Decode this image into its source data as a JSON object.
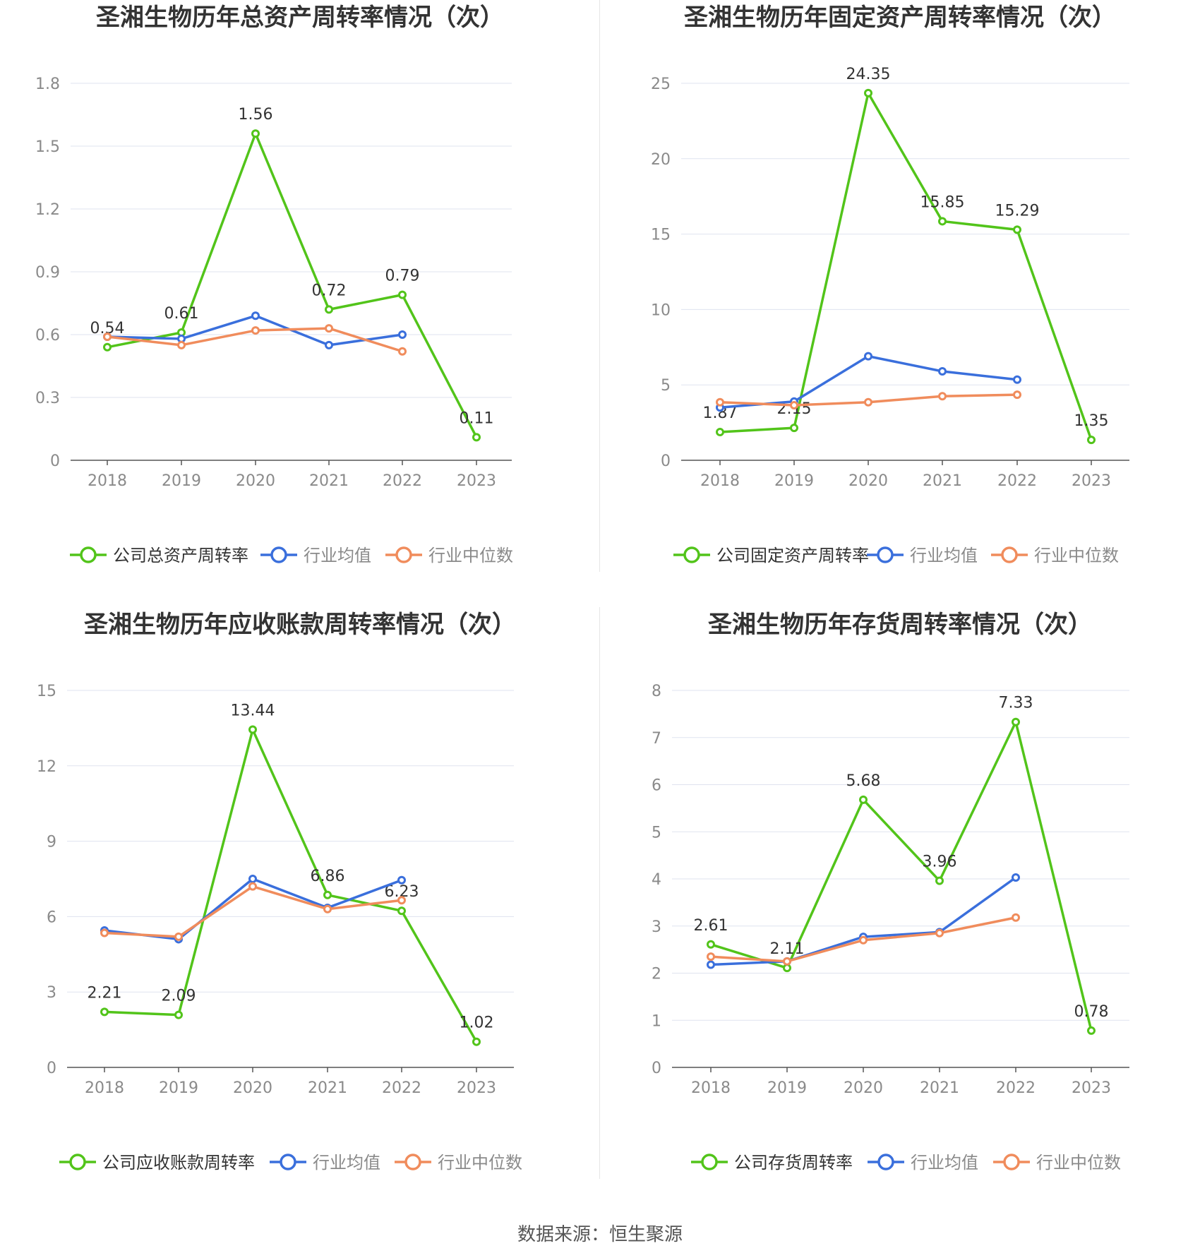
{
  "source": "数据来源：恒生聚源",
  "legend_common": {
    "avg": "行业均值",
    "median": "行业中位数"
  },
  "colors": {
    "company": "#52c41a",
    "avg": "#3a6fdc",
    "median": "#f08c5c",
    "grid": "#dfe3ef",
    "axis": "#555555",
    "tick_text": "#8a8a8a"
  },
  "chart_data": [
    {
      "type": "line",
      "title": "圣湘生物历年总资产周转率情况（次）",
      "categories": [
        "2018",
        "2019",
        "2020",
        "2021",
        "2022",
        "2023"
      ],
      "ylim": [
        0,
        1.8
      ],
      "yticks": [
        "0",
        "0.3",
        "0.6",
        "0.9",
        "1.2",
        "1.5",
        "1.8"
      ],
      "series": [
        {
          "name": "公司总资产周转率",
          "values": [
            0.54,
            0.61,
            1.56,
            0.72,
            0.79,
            0.11
          ],
          "labels": [
            "0.54",
            "0.61",
            "1.56",
            "0.72",
            "0.79",
            "0.11"
          ]
        },
        {
          "name": "行业均值",
          "values": [
            0.59,
            0.58,
            0.69,
            0.55,
            0.6,
            null
          ]
        },
        {
          "name": "行业中位数",
          "values": [
            0.59,
            0.55,
            0.62,
            0.63,
            0.52,
            null
          ]
        }
      ]
    },
    {
      "type": "line",
      "title": "圣湘生物历年固定资产周转率情况（次）",
      "categories": [
        "2018",
        "2019",
        "2020",
        "2021",
        "2022",
        "2023"
      ],
      "ylim": [
        0,
        25
      ],
      "yticks": [
        "0",
        "5",
        "10",
        "15",
        "20",
        "25"
      ],
      "series": [
        {
          "name": "公司固定资产周转率",
          "values": [
            1.87,
            2.15,
            24.35,
            15.85,
            15.29,
            1.35
          ],
          "labels": [
            "1.87",
            "2.15",
            "24.35",
            "15.85",
            "15.29",
            "1.35"
          ]
        },
        {
          "name": "行业均值",
          "values": [
            3.5,
            3.9,
            6.9,
            5.9,
            5.35,
            null
          ]
        },
        {
          "name": "行业中位数",
          "values": [
            3.85,
            3.65,
            3.85,
            4.25,
            4.35,
            null
          ]
        }
      ]
    },
    {
      "type": "line",
      "title": "圣湘生物历年应收账款周转率情况（次）",
      "categories": [
        "2018",
        "2019",
        "2020",
        "2021",
        "2022",
        "2023"
      ],
      "ylim": [
        0,
        15
      ],
      "yticks": [
        "0",
        "3",
        "6",
        "9",
        "12",
        "15"
      ],
      "series": [
        {
          "name": "公司应收账款周转率",
          "values": [
            2.21,
            2.09,
            13.44,
            6.86,
            6.23,
            1.02
          ],
          "labels": [
            "2.21",
            "2.09",
            "13.44",
            "6.86",
            "6.23",
            "1.02"
          ]
        },
        {
          "name": "行业均值",
          "values": [
            5.45,
            5.1,
            7.5,
            6.35,
            7.45,
            null
          ]
        },
        {
          "name": "行业中位数",
          "values": [
            5.35,
            5.2,
            7.2,
            6.3,
            6.65,
            null
          ]
        }
      ]
    },
    {
      "type": "line",
      "title": "圣湘生物历年存货周转率情况（次）",
      "categories": [
        "2018",
        "2019",
        "2020",
        "2021",
        "2022",
        "2023"
      ],
      "ylim": [
        0,
        8
      ],
      "yticks": [
        "0",
        "1",
        "2",
        "3",
        "4",
        "5",
        "6",
        "7",
        "8"
      ],
      "series": [
        {
          "name": "公司存货周转率",
          "values": [
            2.61,
            2.11,
            5.68,
            3.96,
            7.33,
            0.78
          ],
          "labels": [
            "2.61",
            "2.11",
            "5.68",
            "3.96",
            "7.33",
            "0.78"
          ]
        },
        {
          "name": "行业均值",
          "values": [
            2.18,
            2.25,
            2.77,
            2.87,
            4.03,
            null
          ]
        },
        {
          "name": "行业中位数",
          "values": [
            2.35,
            2.25,
            2.7,
            2.85,
            3.18,
            null
          ]
        }
      ]
    }
  ]
}
